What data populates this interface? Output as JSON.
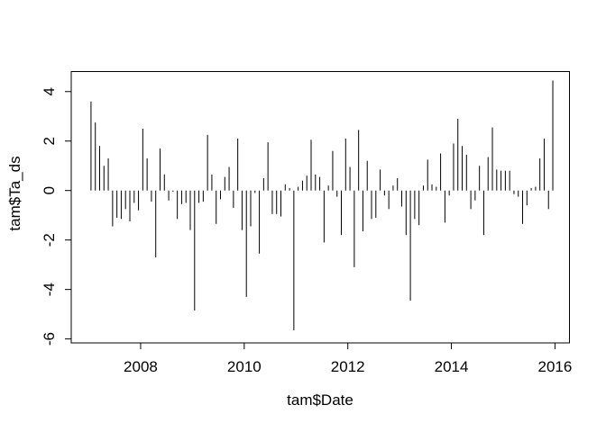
{
  "colors": {
    "line": "#000000",
    "background": "#ffffff",
    "box": "#000000"
  },
  "chart_data": {
    "type": "bar",
    "style": "r-base-type-h-vertical-segments-from-zero",
    "title": "",
    "xlabel": "tam$Date",
    "ylabel": "tam$Ta_ds",
    "grid": false,
    "legend": null,
    "x_ticks": [
      2008,
      2010,
      2012,
      2014,
      2016
    ],
    "x_tick_labels": [
      "2008",
      "2010",
      "2012",
      "2014",
      "2016"
    ],
    "y_ticks": [
      -6,
      -4,
      -2,
      0,
      2,
      4
    ],
    "y_tick_labels": [
      "-6",
      "-4",
      "-2",
      "0",
      "2",
      "4"
    ],
    "xlim": [
      2006.66,
      2016.28
    ],
    "ylim": [
      -6.16,
      4.81
    ],
    "baseline": 0,
    "months": [
      "2007-01",
      "2007-02",
      "2007-03",
      "2007-04",
      "2007-05",
      "2007-06",
      "2007-07",
      "2007-08",
      "2007-09",
      "2007-10",
      "2007-11",
      "2007-12",
      "2008-01",
      "2008-02",
      "2008-03",
      "2008-04",
      "2008-05",
      "2008-06",
      "2008-07",
      "2008-08",
      "2008-09",
      "2008-10",
      "2008-11",
      "2008-12",
      "2009-01",
      "2009-02",
      "2009-03",
      "2009-04",
      "2009-05",
      "2009-06",
      "2009-07",
      "2009-08",
      "2009-09",
      "2009-10",
      "2009-11",
      "2009-12",
      "2010-01",
      "2010-02",
      "2010-03",
      "2010-04",
      "2010-05",
      "2010-06",
      "2010-07",
      "2010-08",
      "2010-09",
      "2010-10",
      "2010-11",
      "2010-12",
      "2011-01",
      "2011-02",
      "2011-03",
      "2011-04",
      "2011-05",
      "2011-06",
      "2011-07",
      "2011-08",
      "2011-09",
      "2011-10",
      "2011-11",
      "2011-12",
      "2012-01",
      "2012-02",
      "2012-03",
      "2012-04",
      "2012-05",
      "2012-06",
      "2012-07",
      "2012-08",
      "2012-09",
      "2012-10",
      "2012-11",
      "2012-12",
      "2013-01",
      "2013-02",
      "2013-03",
      "2013-04",
      "2013-05",
      "2013-06",
      "2013-07",
      "2013-08",
      "2013-09",
      "2013-10",
      "2013-11",
      "2013-12",
      "2014-01",
      "2014-02",
      "2014-03",
      "2014-04",
      "2014-05",
      "2014-06",
      "2014-07",
      "2014-08",
      "2014-09",
      "2014-10",
      "2014-11",
      "2014-12",
      "2015-01",
      "2015-02",
      "2015-03",
      "2015-04",
      "2015-05",
      "2015-06",
      "2015-07",
      "2015-08",
      "2015-09",
      "2015-10",
      "2015-11",
      "2015-12"
    ],
    "values": [
      3.6,
      2.75,
      1.8,
      1.0,
      1.3,
      -1.45,
      -1.1,
      -1.15,
      -0.75,
      -1.25,
      -0.5,
      -0.8,
      2.5,
      1.3,
      -0.45,
      -2.7,
      1.7,
      0.65,
      -0.4,
      -0.05,
      -1.15,
      -0.55,
      -0.5,
      -1.6,
      -4.85,
      -0.5,
      -0.45,
      2.25,
      0.65,
      -1.35,
      -0.35,
      0.55,
      0.95,
      -0.7,
      2.1,
      -1.6,
      -4.3,
      -1.45,
      -0.1,
      -2.55,
      0.5,
      1.95,
      -0.95,
      -0.95,
      -1.05,
      0.25,
      0.1,
      -5.65,
      0.15,
      0.4,
      0.6,
      2.05,
      0.65,
      0.55,
      -2.1,
      0.2,
      1.6,
      -0.25,
      -1.8,
      2.1,
      0.95,
      -3.1,
      2.45,
      -1.65,
      1.2,
      -1.15,
      -1.1,
      0.85,
      -0.2,
      -0.75,
      0.2,
      0.5,
      -0.65,
      -1.8,
      -4.45,
      -1.15,
      -1.4,
      0.2,
      1.25,
      0.25,
      0.15,
      1.5,
      -1.3,
      -0.2,
      1.9,
      2.9,
      1.8,
      1.45,
      -0.75,
      -0.4,
      1.0,
      -1.8,
      1.35,
      2.55,
      0.85,
      0.8,
      0.8,
      0.8,
      -0.15,
      -0.25,
      -1.35,
      -0.6,
      0.1,
      0.15,
      1.3,
      2.1,
      -0.75,
      4.45
    ]
  }
}
